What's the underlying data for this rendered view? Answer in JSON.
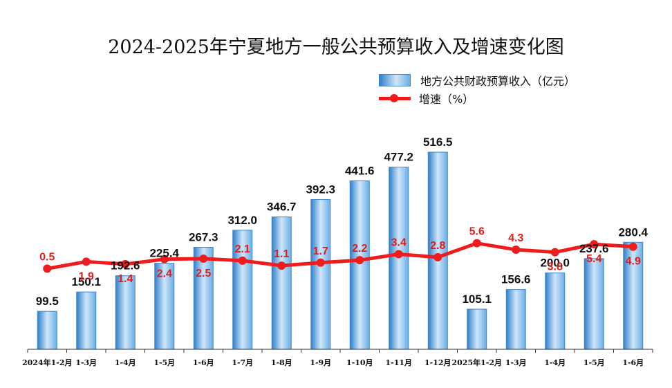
{
  "chart_data": {
    "type": "bar",
    "title": "2024-2025年宁夏地方一般公共预算收入及增速变化图",
    "categories": [
      "2024年1-2月",
      "1-3月",
      "1-4月",
      "1-5月",
      "1-6月",
      "1-7月",
      "1-8月",
      "1-9月",
      "1-10月",
      "1-11月",
      "1-12月",
      "2025年1-2月",
      "1-3月",
      "1-4月",
      "1-5月",
      "1-6月"
    ],
    "series": [
      {
        "name": "地方公共财政预算收入（亿元）",
        "type": "bar",
        "values": [
          99.5,
          150.1,
          192.6,
          225.4,
          267.3,
          312.0,
          346.7,
          392.3,
          441.6,
          477.2,
          516.5,
          105.1,
          156.6,
          200.0,
          237.6,
          280.4
        ],
        "labels": [
          "99.5",
          "150.1",
          "192.6",
          "225.4",
          "267.3",
          "312.0",
          "346.7",
          "392.3",
          "441.6",
          "477.2",
          "516.5",
          "105.1",
          "156.6",
          "200.0",
          "237.6",
          "280.4"
        ]
      },
      {
        "name": "增速（%）",
        "type": "line",
        "values": [
          0.5,
          1.9,
          1.4,
          2.4,
          2.5,
          2.1,
          1.1,
          1.7,
          2.2,
          3.4,
          2.8,
          5.6,
          4.3,
          3.8,
          5.4,
          4.9
        ],
        "labels": [
          "0.5",
          "1.9",
          "1.4",
          "2.4",
          "2.5",
          "2.1",
          "1.1",
          "1.7",
          "2.2",
          "3.4",
          "2.8",
          "5.6",
          "4.3",
          "3.8",
          "5.4",
          "4.9"
        ]
      }
    ],
    "legend": "top-right",
    "grid": false,
    "colors": {
      "bar_edge": "#3f86c9",
      "bar_dark": "#2f7fc9",
      "bar_light": "#cfe6fa",
      "line": "#ee1c1c",
      "value_label": "#111111",
      "rate_label": "#e31b1b"
    }
  }
}
